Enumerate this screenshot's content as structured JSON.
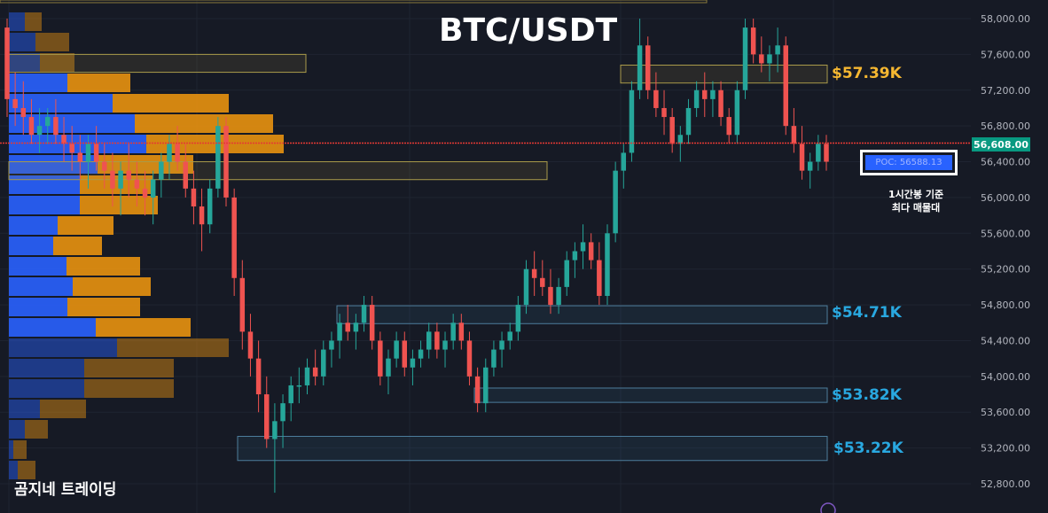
{
  "title": "BTC/USDT",
  "watermark": "곰지네 트레이딩",
  "poc_label": "POC: 56588.13",
  "poc_note": [
    "1시간봉 기준",
    "최다 매물대"
  ],
  "current_price": "56,608.00",
  "levels": [
    {
      "price": 57.39,
      "label": "$57.39K",
      "color": "#f5b731"
    },
    {
      "price": 54.71,
      "label": "$54.71K",
      "color": "#29a8e0"
    },
    {
      "price": 53.82,
      "label": "$53.82K",
      "color": "#29a8e0"
    },
    {
      "price": 53.22,
      "label": "$53.22K",
      "color": "#29a8e0"
    }
  ],
  "colors": {
    "up": "#26a69a",
    "down": "#ef5350",
    "background": "#161a25",
    "poc_line": "#e53935",
    "volume_blue": "#2962ff",
    "volume_orange": "#e8920f"
  },
  "chart_data": {
    "type": "candlestick",
    "title": "BTC/USDT",
    "ylim": [
      52600,
      58200
    ],
    "y_ticks": [
      "58,000.00",
      "57,600.00",
      "57,200.00",
      "56,800.00",
      "56,400.00",
      "56,000.00",
      "55,600.00",
      "55,200.00",
      "54,800.00",
      "54,400.00",
      "54,000.00",
      "53,600.00",
      "53,200.00",
      "52,800.00"
    ],
    "y_tick_values": [
      58000,
      57600,
      57200,
      56800,
      56400,
      56000,
      55600,
      55200,
      54800,
      54400,
      54000,
      53600,
      53200,
      52800
    ],
    "current_price": 56608,
    "poc": 56588.13,
    "candles": [
      [
        57900,
        58000,
        56900,
        57100
      ],
      [
        57100,
        57400,
        56800,
        57000
      ],
      [
        57000,
        57300,
        56700,
        56900
      ],
      [
        56900,
        57100,
        56600,
        56700
      ],
      [
        56700,
        57000,
        56500,
        56800
      ],
      [
        56800,
        57000,
        56600,
        56900
      ],
      [
        56900,
        57100,
        56600,
        56700
      ],
      [
        56700,
        56900,
        56400,
        56600
      ],
      [
        56600,
        56800,
        56300,
        56500
      ],
      [
        56500,
        56700,
        56200,
        56400
      ],
      [
        56400,
        56700,
        56100,
        56600
      ],
      [
        56600,
        56800,
        56300,
        56400
      ],
      [
        56400,
        56600,
        56100,
        56300
      ],
      [
        56300,
        56500,
        55900,
        56100
      ],
      [
        56100,
        56400,
        55800,
        56300
      ],
      [
        56300,
        56600,
        56000,
        56200
      ],
      [
        56200,
        56400,
        55900,
        56100
      ],
      [
        56100,
        56300,
        55800,
        56000
      ],
      [
        56000,
        56300,
        55700,
        56200
      ],
      [
        56200,
        56500,
        56000,
        56400
      ],
      [
        56400,
        56700,
        56200,
        56600
      ],
      [
        56600,
        56800,
        56300,
        56400
      ],
      [
        56400,
        56600,
        56000,
        56100
      ],
      [
        56100,
        56300,
        55700,
        55900
      ],
      [
        55900,
        56100,
        55400,
        55700
      ],
      [
        55700,
        56200,
        55600,
        56100
      ],
      [
        56100,
        56900,
        56000,
        56800
      ],
      [
        56800,
        56900,
        55900,
        56000
      ],
      [
        56000,
        56100,
        54900,
        55100
      ],
      [
        55100,
        55300,
        54300,
        54500
      ],
      [
        54500,
        54700,
        54000,
        54200
      ],
      [
        54200,
        54400,
        53600,
        53800
      ],
      [
        53800,
        54000,
        53200,
        53300
      ],
      [
        53300,
        53700,
        52700,
        53500
      ],
      [
        53500,
        53800,
        53200,
        53700
      ],
      [
        53700,
        54000,
        53500,
        53900
      ],
      [
        53900,
        54100,
        53700,
        53900
      ],
      [
        53900,
        54200,
        53800,
        54100
      ],
      [
        54100,
        54300,
        53900,
        54000
      ],
      [
        54000,
        54400,
        53900,
        54300
      ],
      [
        54300,
        54500,
        54100,
        54400
      ],
      [
        54400,
        54700,
        54200,
        54600
      ],
      [
        54600,
        54800,
        54400,
        54500
      ],
      [
        54500,
        54700,
        54300,
        54600
      ],
      [
        54600,
        54900,
        54500,
        54800
      ],
      [
        54800,
        54900,
        54300,
        54400
      ],
      [
        54400,
        54500,
        53900,
        54000
      ],
      [
        54000,
        54300,
        53800,
        54200
      ],
      [
        54200,
        54500,
        54100,
        54400
      ],
      [
        54400,
        54500,
        54000,
        54100
      ],
      [
        54100,
        54300,
        53900,
        54200
      ],
      [
        54200,
        54400,
        54100,
        54300
      ],
      [
        54300,
        54600,
        54200,
        54500
      ],
      [
        54500,
        54600,
        54200,
        54300
      ],
      [
        54300,
        54500,
        54100,
        54400
      ],
      [
        54400,
        54700,
        54300,
        54600
      ],
      [
        54600,
        54700,
        54300,
        54400
      ],
      [
        54400,
        54500,
        53900,
        54000
      ],
      [
        54000,
        54100,
        53600,
        53700
      ],
      [
        53700,
        54200,
        53600,
        54100
      ],
      [
        54100,
        54400,
        54000,
        54300
      ],
      [
        54300,
        54500,
        54100,
        54400
      ],
      [
        54400,
        54600,
        54300,
        54500
      ],
      [
        54500,
        54900,
        54400,
        54800
      ],
      [
        54800,
        55300,
        54700,
        55200
      ],
      [
        55200,
        55400,
        54900,
        55100
      ],
      [
        55100,
        55300,
        54900,
        55000
      ],
      [
        55000,
        55200,
        54700,
        54800
      ],
      [
        54800,
        55100,
        54700,
        55000
      ],
      [
        55000,
        55400,
        54900,
        55300
      ],
      [
        55300,
        55500,
        55100,
        55400
      ],
      [
        55400,
        55700,
        55200,
        55500
      ],
      [
        55500,
        55600,
        55200,
        55300
      ],
      [
        55300,
        55500,
        54800,
        54900
      ],
      [
        54900,
        55700,
        54800,
        55600
      ],
      [
        55600,
        56400,
        55500,
        56300
      ],
      [
        56300,
        56600,
        56100,
        56500
      ],
      [
        56500,
        57300,
        56400,
        57200
      ],
      [
        57200,
        58000,
        57100,
        57700
      ],
      [
        57700,
        57800,
        57100,
        57200
      ],
      [
        57200,
        57400,
        56900,
        57000
      ],
      [
        57000,
        57200,
        56700,
        56900
      ],
      [
        56900,
        57000,
        56500,
        56600
      ],
      [
        56600,
        56800,
        56400,
        56700
      ],
      [
        56700,
        57100,
        56600,
        57000
      ],
      [
        57000,
        57300,
        56900,
        57200
      ],
      [
        57200,
        57400,
        56900,
        57100
      ],
      [
        57100,
        57300,
        56900,
        57200
      ],
      [
        57200,
        57300,
        56800,
        56900
      ],
      [
        56900,
        57000,
        56600,
        56700
      ],
      [
        56700,
        57300,
        56600,
        57200
      ],
      [
        57200,
        58000,
        57100,
        57900
      ],
      [
        57900,
        58000,
        57500,
        57600
      ],
      [
        57600,
        57800,
        57400,
        57500
      ],
      [
        57500,
        57700,
        57300,
        57600
      ],
      [
        57600,
        57900,
        57400,
        57700
      ],
      [
        57700,
        57800,
        56700,
        56800
      ],
      [
        56800,
        57000,
        56500,
        56600
      ],
      [
        56600,
        56800,
        56200,
        56300
      ],
      [
        56300,
        56500,
        56100,
        56400
      ],
      [
        56400,
        56700,
        56300,
        56600
      ],
      [
        56600,
        56700,
        56300,
        56400
      ]
    ]
  }
}
